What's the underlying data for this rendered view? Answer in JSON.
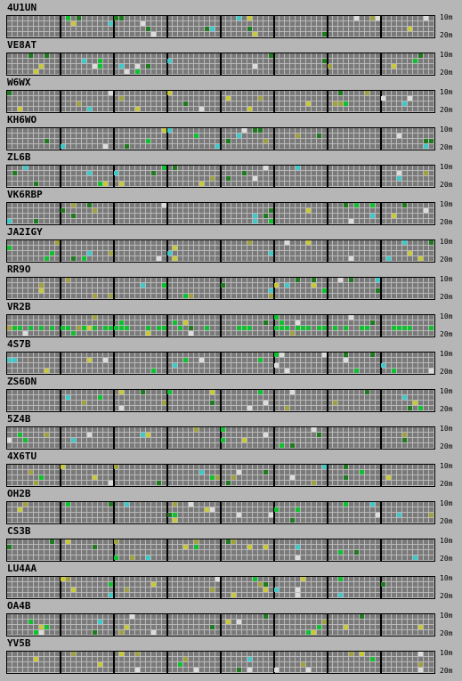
{
  "legend": {
    "top_band": "10m",
    "bottom_band": "20m"
  },
  "colors": {
    "yellow": "#c8c83c",
    "olive": "#a0a040",
    "green": "#10c030",
    "darkgreen": "#207a20",
    "cyan": "#40c8c8",
    "white": "#dcdcdc"
  },
  "stations": [
    {
      "callsign": "4U1UN"
    },
    {
      "callsign": "VE8AT"
    },
    {
      "callsign": "W6WX"
    },
    {
      "callsign": "KH6WO"
    },
    {
      "callsign": "ZL6B"
    },
    {
      "callsign": "VK6RBP"
    },
    {
      "callsign": "JA2IGY"
    },
    {
      "callsign": "RR9O"
    },
    {
      "callsign": "VR2B"
    },
    {
      "callsign": "4S7B"
    },
    {
      "callsign": "ZS6DN"
    },
    {
      "callsign": "5Z4B"
    },
    {
      "callsign": "4X6TU"
    },
    {
      "callsign": "OH2B"
    },
    {
      "callsign": "CS3B"
    },
    {
      "callsign": "LU4AA"
    },
    {
      "callsign": "OA4B"
    },
    {
      "callsign": "YV5B"
    }
  ]
}
